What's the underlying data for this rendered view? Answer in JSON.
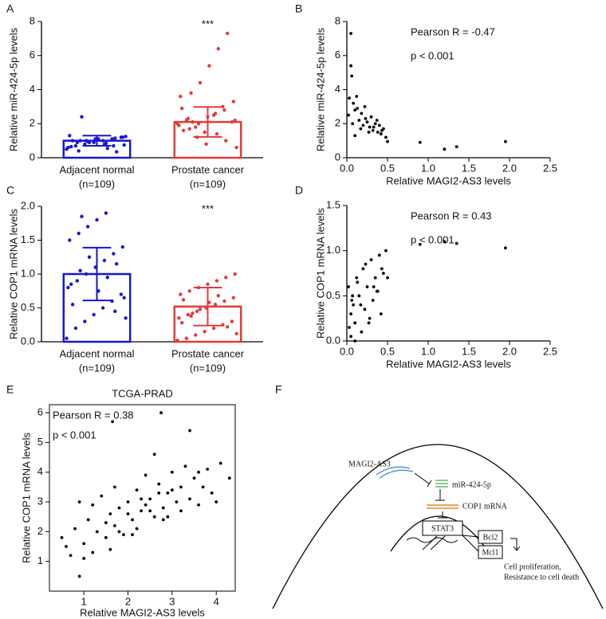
{
  "chart_data": [
    {
      "type": "bar",
      "label": "A",
      "ylabel": "Relative miR-424-5p levels",
      "frame": "axes",
      "categories": [
        "Adjacent normal",
        "Prostate cancer"
      ],
      "category_notes": [
        "(n=109)",
        "(n=109)"
      ],
      "values": [
        1.0,
        2.1
      ],
      "errors": [
        0.3,
        0.88
      ],
      "colors": [
        "#1616d2",
        "#e23b3b"
      ],
      "significance": [
        null,
        "***"
      ],
      "points": [
        [
          0.5,
          0.7,
          0.8,
          0.9,
          1.0,
          1.1,
          1.2,
          0.6,
          0.9,
          1.0,
          1.1,
          0.8,
          0.7,
          1.2,
          1.3,
          0.4,
          0.95,
          1.05,
          0.85,
          1.15,
          0.75,
          0.65,
          1.0,
          0.9,
          1.1,
          0.55,
          0.35,
          1.25,
          1.0,
          2.4
        ],
        [
          2.0,
          2.2,
          1.8,
          1.5,
          2.5,
          3.0,
          2.1,
          1.9,
          2.3,
          1.2,
          0.8,
          2.6,
          2.8,
          3.3,
          3.6,
          1.7,
          2.0,
          2.4,
          1.4,
          1.0,
          2.2,
          2.9,
          3.8,
          4.4,
          5.4,
          6.4,
          7.3,
          0.6,
          1.6,
          2.1
        ]
      ],
      "ylim": [
        0,
        8
      ],
      "yticks": [
        0,
        2,
        4,
        6,
        8
      ]
    },
    {
      "type": "scatter",
      "label": "B",
      "ylabel": "Relative miR-424-5p levels",
      "xlabel": "Relative MAGI2-AS3 levels",
      "frame": "axes",
      "annotations": [
        "Pearson R = -0.47",
        "p < 0.001"
      ],
      "color": "#000000",
      "x": [
        0.02,
        0.05,
        0.05,
        0.08,
        0.1,
        0.12,
        0.15,
        0.18,
        0.2,
        0.22,
        0.25,
        0.28,
        0.3,
        0.32,
        0.35,
        0.38,
        0.4,
        0.42,
        0.45,
        0.48,
        0.03,
        0.07,
        0.13,
        0.17,
        0.23,
        0.27,
        0.33,
        0.37,
        0.43,
        0.5,
        0.9,
        1.2,
        1.35,
        1.95,
        0.06,
        0.1
      ],
      "values": [
        2.5,
        7.3,
        5.4,
        3.2,
        2.8,
        3.6,
        2.2,
        2.6,
        1.9,
        3.0,
        2.1,
        1.8,
        2.4,
        1.6,
        2.0,
        1.5,
        1.9,
        1.4,
        1.7,
        1.2,
        3.5,
        2.0,
        2.9,
        1.7,
        2.3,
        1.5,
        1.8,
        2.2,
        1.6,
        0.95,
        0.9,
        0.5,
        0.65,
        0.95,
        4.8,
        1.3
      ],
      "xlim": [
        0,
        2.5
      ],
      "xticks": [
        {
          "value": 0,
          "label": "0.0"
        },
        0.5,
        {
          "value": 1,
          "label": "1.0"
        },
        1.5,
        {
          "value": 2,
          "label": "2.0"
        },
        2.5
      ],
      "ylim": [
        0,
        8
      ],
      "yticks": [
        0,
        2,
        4,
        6,
        8
      ]
    },
    {
      "type": "bar",
      "label": "C",
      "ylabel": "Relative COP1 mRNA levels",
      "frame": "axes",
      "categories": [
        "Adjacent normal",
        "Prostate cancer"
      ],
      "category_notes": [
        "(n=109)",
        "(n=109)"
      ],
      "values": [
        1.0,
        0.52
      ],
      "errors": [
        0.39,
        0.28
      ],
      "colors": [
        "#1616d2",
        "#e23b3b"
      ],
      "significance": [
        null,
        "***"
      ],
      "points": [
        [
          0.05,
          0.2,
          0.3,
          0.4,
          0.5,
          0.6,
          0.7,
          0.8,
          0.9,
          1.0,
          1.1,
          1.2,
          1.3,
          1.4,
          1.5,
          1.6,
          1.7,
          1.8,
          1.9,
          0.45,
          0.65,
          0.85,
          1.05,
          1.25,
          0.75,
          0.95,
          1.15,
          0.35,
          0.55,
          1.85
        ],
        [
          0.02,
          0.05,
          0.1,
          0.15,
          0.2,
          0.25,
          0.3,
          0.35,
          0.4,
          0.45,
          0.5,
          0.55,
          0.6,
          0.65,
          0.7,
          0.75,
          0.8,
          0.85,
          0.9,
          0.95,
          1.0,
          0.28,
          0.38,
          0.48,
          0.58,
          0.68,
          0.22,
          0.12,
          0.62,
          0.42
        ]
      ],
      "ylim": [
        0,
        2
      ],
      "yticks": [
        {
          "value": 0,
          "label": "0.0"
        },
        0.5,
        {
          "value": 1,
          "label": "1.0"
        },
        1.5,
        {
          "value": 2,
          "label": "2.0"
        }
      ]
    },
    {
      "type": "scatter",
      "label": "D",
      "ylabel": "Relative COP1 mRNA levels",
      "xlabel": "Relative MAGI2-AS3 levels",
      "frame": "axes",
      "annotations": [
        "Pearson R = 0.43",
        "p < 0.001"
      ],
      "color": "#000000",
      "x": [
        0.02,
        0.05,
        0.05,
        0.08,
        0.1,
        0.12,
        0.15,
        0.18,
        0.2,
        0.22,
        0.25,
        0.28,
        0.3,
        0.32,
        0.35,
        0.38,
        0.4,
        0.42,
        0.45,
        0.48,
        0.03,
        0.07,
        0.13,
        0.17,
        0.23,
        0.27,
        0.33,
        0.37,
        0.43,
        0.5,
        0.9,
        1.2,
        1.35,
        1.95,
        0.06,
        0.1
      ],
      "values": [
        0.6,
        0.3,
        0.05,
        0.4,
        0.2,
        0.7,
        0.5,
        0.1,
        0.8,
        0.35,
        0.6,
        0.25,
        0.9,
        0.45,
        0.7,
        0.55,
        0.95,
        0.3,
        0.75,
        1.0,
        0.15,
        0.5,
        0.65,
        0.4,
        0.85,
        0.2,
        0.6,
        0.55,
        0.8,
        0.7,
        1.07,
        1.1,
        1.08,
        1.03,
        0.45,
        0.0
      ],
      "xlim": [
        0,
        2.5
      ],
      "xticks": [
        {
          "value": 0,
          "label": "0.0"
        },
        0.5,
        {
          "value": 1,
          "label": "1.0"
        },
        1.5,
        {
          "value": 2,
          "label": "2.0"
        },
        2.5
      ],
      "ylim": [
        0,
        1.5
      ],
      "yticks": [
        {
          "value": 0,
          "label": "0.0"
        },
        0.5,
        {
          "value": 1,
          "label": "1.0"
        },
        1.5
      ]
    },
    {
      "type": "scatter",
      "label": "E",
      "title": "TCGA-PRAD",
      "ylabel": "Relative COP1 mRNA levels",
      "xlabel": "Relative MAGI2-AS3 levels",
      "frame": "box",
      "annotations": [
        "Pearson R = 0.38",
        "p < 0.001"
      ],
      "color": "#000000",
      "x": [
        0.5,
        0.6,
        0.7,
        0.8,
        0.9,
        1.0,
        1.1,
        1.2,
        1.3,
        1.4,
        1.5,
        1.6,
        1.7,
        1.8,
        1.9,
        2.0,
        2.1,
        2.2,
        2.3,
        2.4,
        2.5,
        2.6,
        2.7,
        2.8,
        2.9,
        3.0,
        3.1,
        3.2,
        3.3,
        3.4,
        3.5,
        3.6,
        3.7,
        3.8,
        3.9,
        4.0,
        4.1,
        4.3,
        1.0,
        1.2,
        1.5,
        1.7,
        2.0,
        2.2,
        2.4,
        2.6,
        2.8,
        3.0,
        3.2,
        3.4,
        3.6,
        2.1,
        2.3,
        2.5,
        2.7,
        2.9,
        1.8,
        1.6,
        0.9,
        2.75,
        1.65
      ],
      "values": [
        1.8,
        1.5,
        1.2,
        2.1,
        0.5,
        1.6,
        2.4,
        1.3,
        2.0,
        3.2,
        1.8,
        2.6,
        2.2,
        2.8,
        1.9,
        3.0,
        2.4,
        3.4,
        2.7,
        2.9,
        3.1,
        2.5,
        3.6,
        2.8,
        3.3,
        4.0,
        3.0,
        3.5,
        4.2,
        3.1,
        3.8,
        2.9,
        3.5,
        4.1,
        3.3,
        3.0,
        4.3,
        3.8,
        1.1,
        2.9,
        2.3,
        3.5,
        2.6,
        2.1,
        3.9,
        4.6,
        2.4,
        3.4,
        2.7,
        5.4,
        4.0,
        1.9,
        3.1,
        2.7,
        3.3,
        2.5,
        2.0,
        1.4,
        3.0,
        6.0,
        5.7
      ],
      "xlim": [
        0.22,
        4.43
      ],
      "xticks": [
        1,
        2,
        3,
        4
      ],
      "ylim": [
        0,
        6.27
      ],
      "yticks": [
        1,
        2,
        3,
        4,
        5,
        6
      ]
    }
  ],
  "diagram": {
    "label": "F",
    "lncrna": "MAGI2-AS3",
    "mirna": "miR-424-5p",
    "mrna": "COP1 mRNA",
    "tf": "STAT3",
    "targets": [
      "Bcl2",
      "Mcl1"
    ],
    "outcomes": [
      "Cell proliferation,",
      "Resistance to cell death"
    ]
  }
}
